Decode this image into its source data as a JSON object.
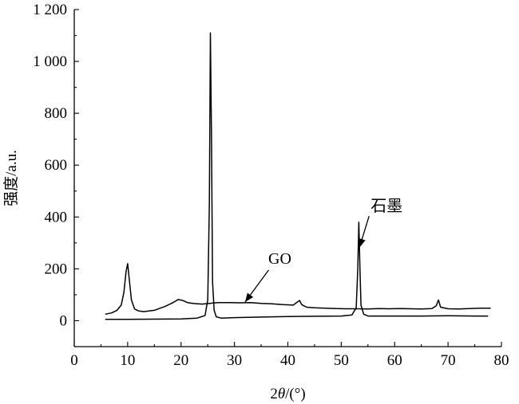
{
  "chart_data": {
    "type": "line",
    "title": "",
    "xlabel_parts": [
      "2",
      "θ",
      "/(°)"
    ],
    "ylabel": "强度/a.u.",
    "xlim": [
      0,
      80
    ],
    "ylim": [
      -100,
      1200
    ],
    "xticks": [
      0,
      10,
      20,
      30,
      40,
      50,
      60,
      70,
      80
    ],
    "yticks": [
      0,
      200,
      400,
      600,
      800,
      1000,
      1200
    ],
    "ytick_labels": [
      "0",
      "200",
      "400",
      "600",
      "800",
      "1 000",
      "1 200"
    ],
    "grid": false,
    "series": [
      {
        "name": "GO",
        "x": [
          5.8,
          7,
          8,
          8.8,
          9.3,
          9.7,
          10.0,
          10.3,
          10.7,
          11.3,
          12,
          13,
          15,
          17,
          18.5,
          19.5,
          20.3,
          21.2,
          22.5,
          24,
          25,
          26,
          27,
          29,
          31,
          33,
          35,
          37,
          39,
          41,
          41.8,
          42.2,
          42.6,
          43.5,
          45,
          47,
          49,
          51,
          53,
          55,
          57,
          59,
          61,
          63,
          65,
          67,
          67.8,
          68.2,
          68.6,
          70,
          72,
          74,
          76,
          78
        ],
        "y": [
          25,
          30,
          40,
          60,
          110,
          190,
          220,
          160,
          80,
          45,
          38,
          35,
          40,
          55,
          70,
          82,
          78,
          70,
          66,
          64,
          66,
          68,
          70,
          70,
          69,
          70,
          67,
          65,
          62,
          60,
          72,
          78,
          62,
          52,
          50,
          48,
          47,
          46,
          46,
          45,
          47,
          46,
          47,
          46,
          45,
          47,
          58,
          80,
          52,
          46,
          45,
          47,
          48,
          48
        ]
      },
      {
        "name": "石墨",
        "x": [
          5.8,
          10,
          15,
          20,
          23,
          24.5,
          25.0,
          25.3,
          25.5,
          25.7,
          25.9,
          26.2,
          26.6,
          27.5,
          30,
          35,
          40,
          45,
          50,
          52,
          52.8,
          53.1,
          53.3,
          53.5,
          53.7,
          54.2,
          55,
          60,
          65,
          70,
          75,
          77.5
        ],
        "y": [
          5,
          5,
          6,
          7,
          10,
          20,
          80,
          450,
          1110,
          700,
          150,
          40,
          15,
          10,
          12,
          14,
          16,
          17,
          18,
          22,
          50,
          200,
          380,
          200,
          60,
          25,
          18,
          18,
          18,
          19,
          18,
          18
        ]
      }
    ],
    "annotations": [
      {
        "text": "GO",
        "series": "GO",
        "text_at": [
          38.5,
          220
        ],
        "arrow_to": [
          32,
          72
        ]
      },
      {
        "text": "石墨",
        "series": "石墨",
        "text_at": [
          58.5,
          422
        ],
        "arrow_to": [
          53.4,
          282
        ]
      }
    ]
  }
}
